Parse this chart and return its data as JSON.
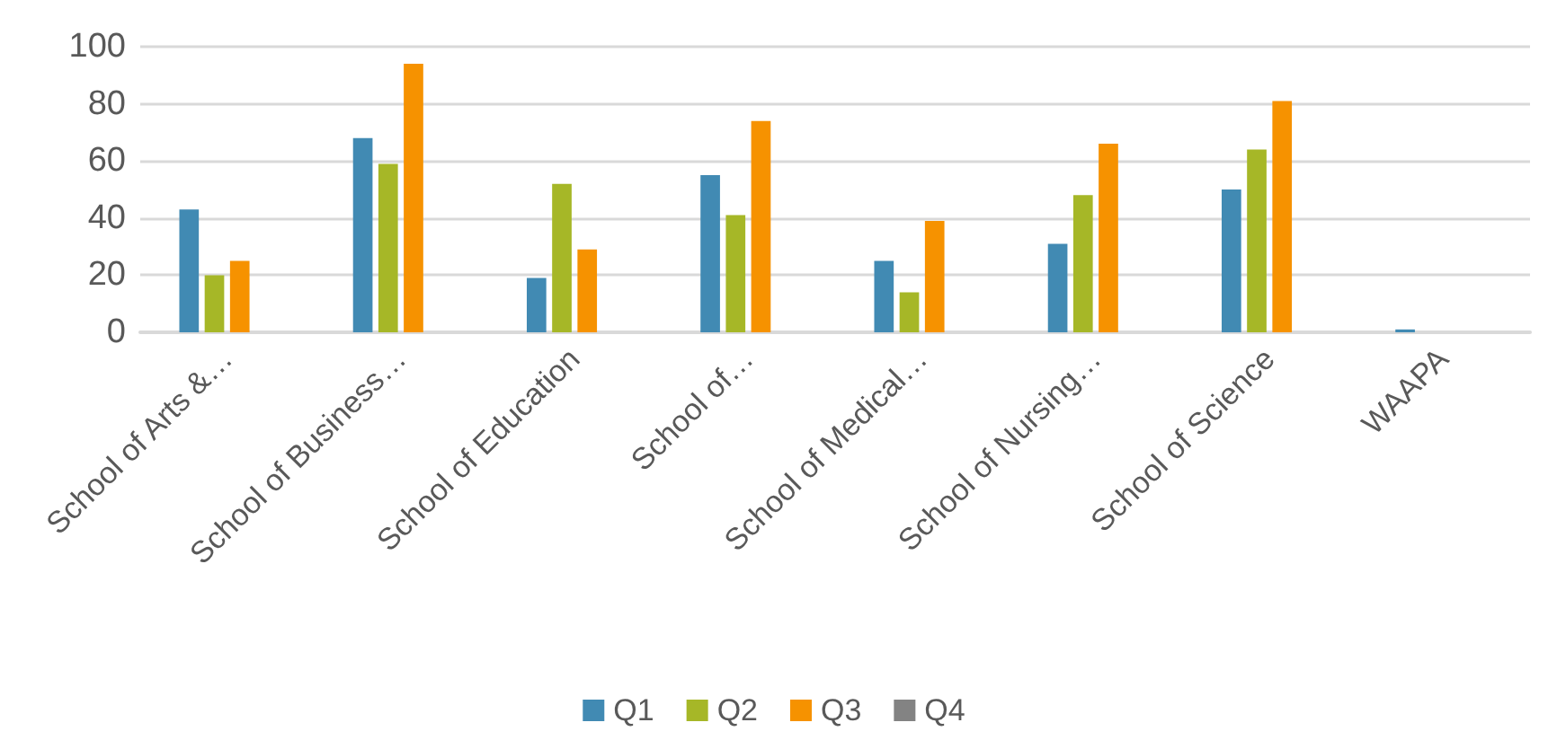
{
  "chart_data": {
    "type": "bar",
    "categories": [
      "School of Arts &…",
      "School of Business…",
      "School of Education",
      "School of…",
      "School of Medical…",
      "School of Nursing…",
      "School of Science",
      "WAAPA"
    ],
    "series": [
      {
        "name": "Q1",
        "color": "#418ab3",
        "values": [
          43,
          68,
          19,
          55,
          25,
          31,
          50,
          1
        ]
      },
      {
        "name": "Q2",
        "color": "#a6b727",
        "values": [
          20,
          59,
          52,
          41,
          14,
          48,
          64,
          0
        ]
      },
      {
        "name": "Q3",
        "color": "#f69200",
        "values": [
          25,
          94,
          29,
          74,
          39,
          66,
          81,
          0
        ]
      },
      {
        "name": "Q4",
        "color": "#838383",
        "values": [
          0,
          0,
          0,
          0,
          0,
          0,
          0,
          0
        ]
      }
    ],
    "ylim": [
      0,
      100
    ],
    "yticks": [
      0,
      20,
      40,
      60,
      80,
      100
    ],
    "grid": "y",
    "legend": "bottom"
  }
}
